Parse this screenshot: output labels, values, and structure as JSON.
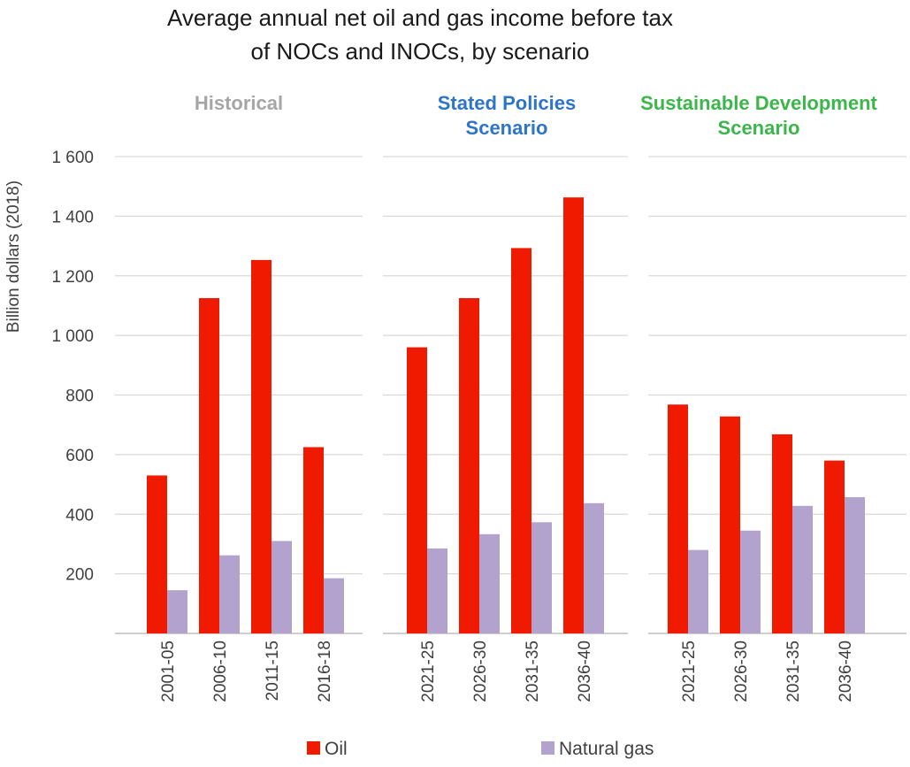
{
  "chart_data": {
    "type": "bar",
    "title_lines": [
      "Average annual net oil and gas income before tax",
      "of NOCs and INOCs, by scenario"
    ],
    "ylabel": "Billion dollars (2018)",
    "ylim": [
      0,
      1600
    ],
    "yticks": [
      200,
      400,
      600,
      800,
      1000,
      1200,
      1400,
      1600
    ],
    "ytick_labels": [
      "200",
      "400",
      "600",
      "800",
      "1 000",
      "1 200",
      "1 400",
      "1 600"
    ],
    "grid": true,
    "legend_position": "bottom",
    "colors": {
      "Oil": "#f01a00",
      "Natural gas": "#b1a3cd"
    },
    "panels": [
      {
        "title": [
          "Historical"
        ],
        "title_color": "#a6a6a6",
        "categories": [
          "2001-05",
          "2006-10",
          "2011-15",
          "2016-18"
        ],
        "series": [
          {
            "name": "Oil",
            "values": [
              530,
              1125,
              1253,
              625
            ]
          },
          {
            "name": "Natural gas",
            "values": [
              145,
              262,
              310,
              185
            ]
          }
        ]
      },
      {
        "title": [
          "Stated Policies",
          "Scenario"
        ],
        "title_color": "#2e75c8",
        "categories": [
          "2021-25",
          "2026-30",
          "2031-35",
          "2036-40"
        ],
        "series": [
          {
            "name": "Oil",
            "values": [
              960,
              1125,
              1293,
              1463
            ]
          },
          {
            "name": "Natural gas",
            "values": [
              285,
              333,
              373,
              437
            ]
          }
        ]
      },
      {
        "title": [
          "Sustainable Development",
          "Scenario"
        ],
        "title_color": "#3cb54a",
        "categories": [
          "2021-25",
          "2026-30",
          "2031-35",
          "2036-40"
        ],
        "series": [
          {
            "name": "Oil",
            "values": [
              768,
              728,
              668,
              580
            ]
          },
          {
            "name": "Natural gas",
            "values": [
              280,
              345,
              428,
              457
            ]
          }
        ]
      }
    ],
    "legend": [
      "Oil",
      "Natural gas"
    ]
  }
}
